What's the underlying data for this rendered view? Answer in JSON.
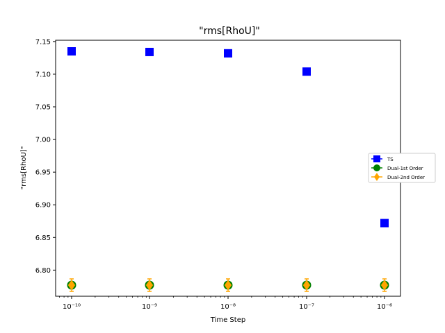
{
  "chart_data": {
    "type": "scatter",
    "title": "\"rms[RhoU]\"",
    "xlabel": "Time Step",
    "ylabel": "\"rms[RhoU]\"",
    "xscale": "log",
    "x": [
      1e-10,
      1e-09,
      1e-08,
      1e-07,
      1e-06
    ],
    "xtick_labels": [
      "10⁻¹⁰",
      "10⁻⁹",
      "10⁻⁸",
      "10⁻⁷",
      "10⁻⁶"
    ],
    "ylim": [
      6.76,
      7.152
    ],
    "yticks": [
      "6.80",
      "6.85",
      "6.90",
      "6.95",
      "7.00",
      "7.05",
      "7.10",
      "7.15"
    ],
    "legend_position": "center-right",
    "grid": false,
    "series": [
      {
        "name": "TS",
        "color": "#0000ff",
        "marker": "square",
        "values": [
          7.135,
          7.134,
          7.132,
          7.104,
          6.872
        ]
      },
      {
        "name": "Dual-1st Order",
        "color": "#008000",
        "marker": "circle",
        "values": [
          6.777,
          6.777,
          6.777,
          6.777,
          6.777
        ]
      },
      {
        "name": "Dual-2nd Order",
        "color": "#ffa500",
        "marker": "diamond",
        "values": [
          6.777,
          6.777,
          6.777,
          6.777,
          6.777
        ]
      }
    ]
  }
}
